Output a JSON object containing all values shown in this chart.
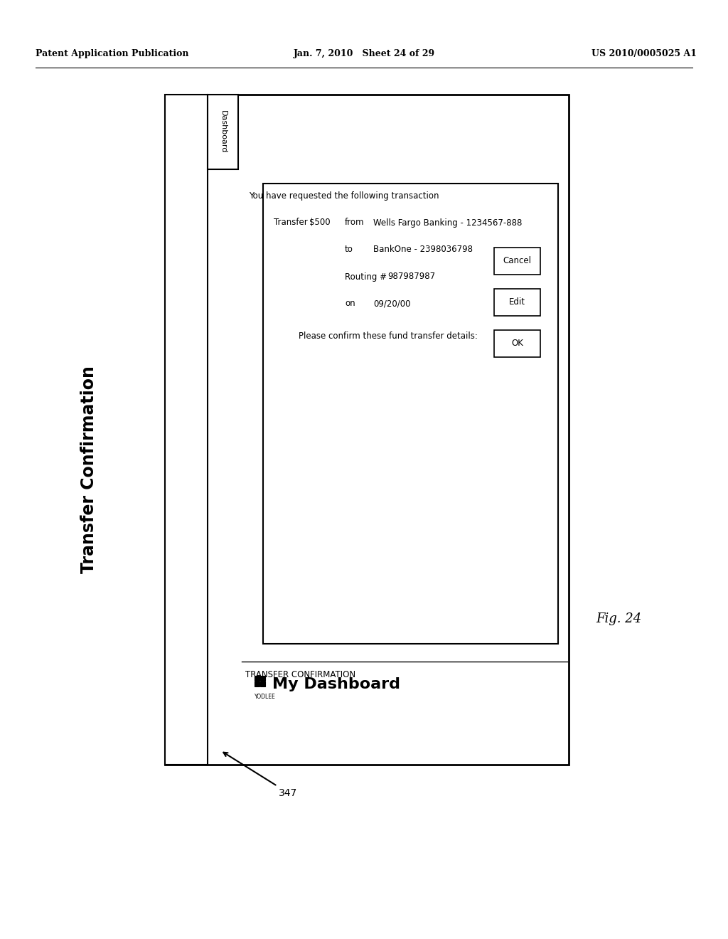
{
  "bg_color": "#ffffff",
  "header_left": "Patent Application Publication",
  "header_center": "Jan. 7, 2010   Sheet 24 of 29",
  "header_right": "US 2010/0005025 A1",
  "page_title": "Transfer Confirmation",
  "sidebar_label": "Dashboard",
  "logo_text": "YODLEE",
  "dashboard_title": "My Dashboard",
  "section_label": "TRANSFER CONFIRMATION",
  "dialog_intro": "You have requested the following transaction",
  "transfer_label": "Transfer",
  "transfer_amount": "$500",
  "from_label": "from",
  "from_value": "Wells Fargo Banking - 1234567-888",
  "to_label": "to",
  "to_value": "BankOne - 2398036798",
  "routing_label": "Routing #",
  "routing_value": "987987987",
  "on_label": "on",
  "on_value": "09/20/00",
  "confirm_text": "Please confirm these fund transfer details:",
  "ok_label": "OK",
  "edit_label": "Edit",
  "cancel_label": "Cancel",
  "fig_label": "Fig. 24",
  "arrow_label": "347"
}
